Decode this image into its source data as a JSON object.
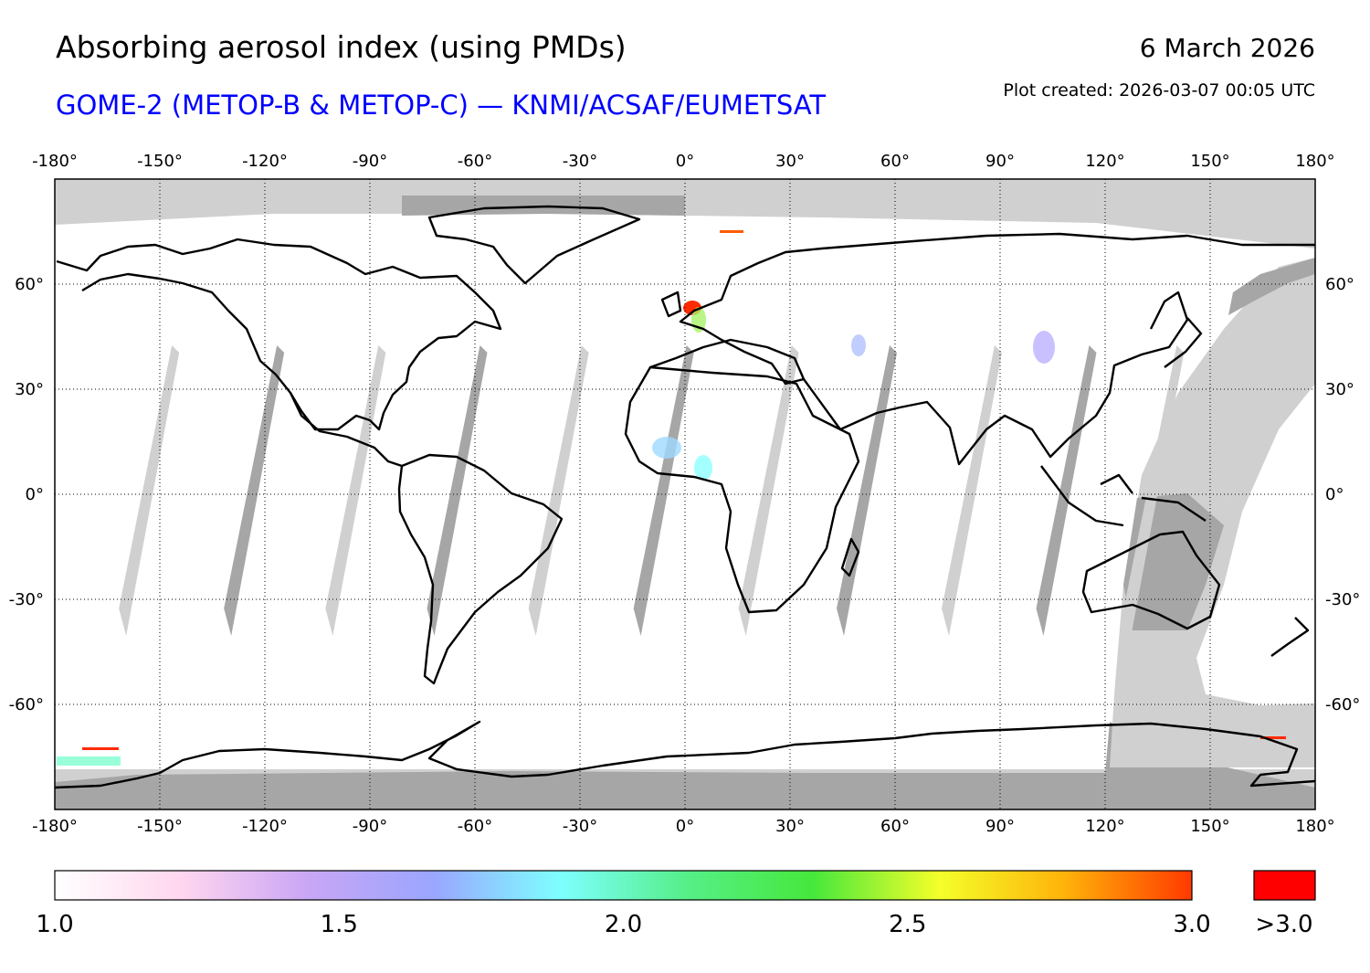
{
  "title": "Absorbing aerosol index (using PMDs)",
  "subtitle": "GOME-2 (METOP-B & METOP-C) — KNMI/ACSAF/EUMETSAT",
  "date": "6 March 2026",
  "plot_created": "Plot created: 2026-03-07 00:05 UTC",
  "map": {
    "lon_ticks": [
      "-180°",
      "-150°",
      "-120°",
      "-90°",
      "-60°",
      "-30°",
      "0°",
      "30°",
      "60°",
      "90°",
      "120°",
      "150°",
      "180°"
    ],
    "lat_ticks": [
      "60°",
      "30°",
      "0°",
      "-30°",
      "-60°"
    ],
    "lon_range": [
      -180,
      180
    ],
    "lat_range": [
      -90,
      90
    ],
    "gridline_lons": [
      -150,
      -120,
      -90,
      -60,
      -30,
      0,
      30,
      60,
      90,
      120,
      150
    ],
    "gridline_lats": [
      60,
      30,
      0,
      -30,
      -60
    ],
    "colors": {
      "no_data": "#d0d0d0",
      "night": "#a6a6a6",
      "coast": "#000000",
      "high": "#ff0000"
    }
  },
  "colorbar": {
    "labels": [
      "1.0",
      "1.5",
      "2.0",
      "2.5",
      "3.0"
    ],
    "over_label": ">3.0",
    "range": [
      1.0,
      3.0
    ],
    "stops": [
      "#ffffff",
      "#ffd6ef",
      "#c9a6f5",
      "#9aa6ff",
      "#7effff",
      "#55ef88",
      "#46e83c",
      "#f4ff2a",
      "#ffb20a",
      "#ff3a00"
    ],
    "over_color": "#ff0000"
  }
}
